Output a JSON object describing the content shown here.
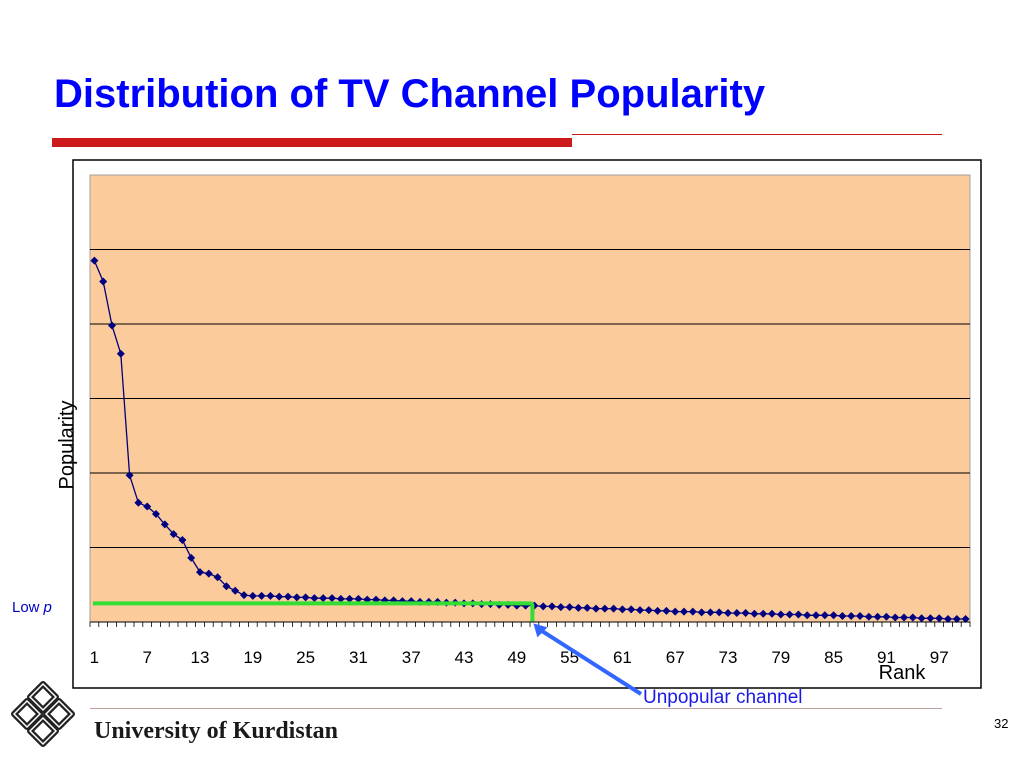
{
  "slide": {
    "title": "Distribution of TV Channel Popularity",
    "footer_name": "University of Kurdistan",
    "page_number": "32",
    "accent_color": "#CC1A1A",
    "title_color": "#0000FF",
    "logo_icon": "university-knot-logo"
  },
  "chart_data": {
    "type": "line",
    "title": "",
    "xlabel": "Rank",
    "ylabel": "Popularity",
    "x_tick_labels": [
      "1",
      "7",
      "13",
      "19",
      "25",
      "31",
      "37",
      "43",
      "49",
      "55",
      "61",
      "67",
      "73",
      "79",
      "85",
      "91",
      "97"
    ],
    "xlim": [
      1,
      100
    ],
    "ylim": [
      0,
      6
    ],
    "grid": true,
    "y_tick_labels_shown": false,
    "plot_background": "#FBCB9B",
    "series": [
      {
        "color": "#000080",
        "marker": "diamond",
        "x": [
          1,
          2,
          3,
          4,
          5,
          6,
          7,
          8,
          9,
          10,
          11,
          12,
          13,
          14,
          15,
          16,
          17,
          18,
          19,
          20,
          21,
          22,
          23,
          24,
          25,
          26,
          27,
          28,
          29,
          30,
          31,
          32,
          33,
          34,
          35,
          36,
          37,
          38,
          39,
          40,
          41,
          42,
          43,
          44,
          45,
          46,
          47,
          48,
          49,
          50,
          51,
          52,
          53,
          54,
          55,
          56,
          57,
          58,
          59,
          60,
          61,
          62,
          63,
          64,
          65,
          66,
          67,
          68,
          69,
          70,
          71,
          72,
          73,
          74,
          75,
          76,
          77,
          78,
          79,
          80,
          81,
          82,
          83,
          84,
          85,
          86,
          87,
          88,
          89,
          90,
          91,
          92,
          93,
          94,
          95,
          96,
          97,
          98,
          99,
          100
        ],
        "values": [
          4.85,
          4.57,
          3.98,
          3.6,
          1.97,
          1.6,
          1.55,
          1.45,
          1.31,
          1.18,
          1.1,
          0.86,
          0.67,
          0.65,
          0.6,
          0.48,
          0.42,
          0.36,
          0.35,
          0.35,
          0.35,
          0.34,
          0.34,
          0.33,
          0.33,
          0.32,
          0.32,
          0.32,
          0.31,
          0.31,
          0.31,
          0.3,
          0.3,
          0.29,
          0.29,
          0.28,
          0.28,
          0.27,
          0.27,
          0.27,
          0.26,
          0.26,
          0.25,
          0.25,
          0.24,
          0.24,
          0.23,
          0.23,
          0.22,
          0.22,
          0.22,
          0.21,
          0.21,
          0.2,
          0.2,
          0.19,
          0.19,
          0.18,
          0.18,
          0.18,
          0.17,
          0.17,
          0.16,
          0.16,
          0.15,
          0.15,
          0.14,
          0.14,
          0.14,
          0.13,
          0.13,
          0.13,
          0.12,
          0.12,
          0.12,
          0.11,
          0.11,
          0.11,
          0.1,
          0.1,
          0.1,
          0.09,
          0.09,
          0.09,
          0.09,
          0.08,
          0.08,
          0.08,
          0.07,
          0.07,
          0.07,
          0.06,
          0.06,
          0.06,
          0.05,
          0.05,
          0.05,
          0.04,
          0.04,
          0.04
        ]
      }
    ],
    "annotations": {
      "threshold_label": "Low",
      "threshold_symbol": "p",
      "threshold_value": 0.25,
      "threshold_end_rank": 51,
      "threshold_color": "#33DD33",
      "channel_label": "Unpopular channel",
      "channel_rank": 51,
      "channel_color": "#3366FF"
    }
  }
}
